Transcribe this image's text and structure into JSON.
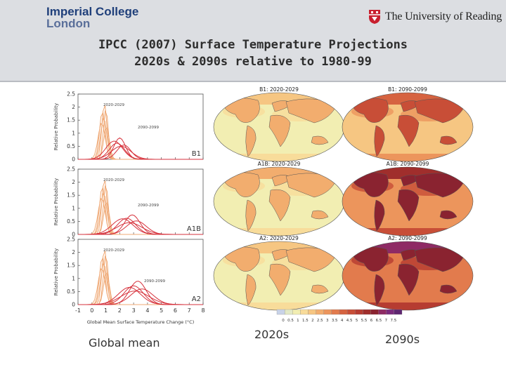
{
  "header": {
    "logo_left": {
      "line1": "Imperial College",
      "line2": "London"
    },
    "logo_right": {
      "text": "The University of Reading"
    },
    "title_line1": "IPCC (2007) Surface Temperature Projections",
    "title_line2": "2020s & 2090s relative to 1980-99"
  },
  "figure": {
    "y_axis_label": "Relative Probability",
    "x_axis_label": "Global Mean Surface Temperature Change (°C)",
    "x_ticks": [
      "-1",
      "0",
      "1",
      "2",
      "3",
      "4",
      "5",
      "6",
      "7",
      "8"
    ],
    "y_ticks": [
      "0",
      "0.5",
      "1",
      "1.5",
      "2",
      "2.5"
    ],
    "panels": [
      {
        "scenario": "B1",
        "early_label": "2020-2029",
        "late_label": "2090-2099",
        "map_early_title": "B1: 2020-2029",
        "map_late_title": "B1: 2090-2099"
      },
      {
        "scenario": "A1B",
        "early_label": "2020-2029",
        "late_label": "2090-2099",
        "map_early_title": "A1B: 2020-2029",
        "map_late_title": "A1B: 2090-2099"
      },
      {
        "scenario": "A2",
        "early_label": "2020-2029",
        "late_label": "2090-2099",
        "map_early_title": "A2: 2020-2029",
        "map_late_title": "A2: 2090-2099"
      }
    ],
    "colorbar_ticks": [
      "0",
      "0.5",
      "1",
      "1.5",
      "2",
      "2.5",
      "3",
      "3.5",
      "4",
      "4.5",
      "5",
      "5.5",
      "6",
      "6.5",
      "7",
      "7.5"
    ],
    "colorbar_colors": [
      "#c9d3e8",
      "#e3e9c6",
      "#f2eeb2",
      "#f8dc9a",
      "#f6c682",
      "#f2ad6e",
      "#ec955c",
      "#e27b4d",
      "#d66340",
      "#c84e37",
      "#b63c31",
      "#a02e2c",
      "#8a2330",
      "#8e2a64",
      "#7a2a7c",
      "#5e2670"
    ]
  },
  "captions": {
    "global_mean": "Global mean",
    "early": "2020s",
    "late": "2090s"
  }
}
